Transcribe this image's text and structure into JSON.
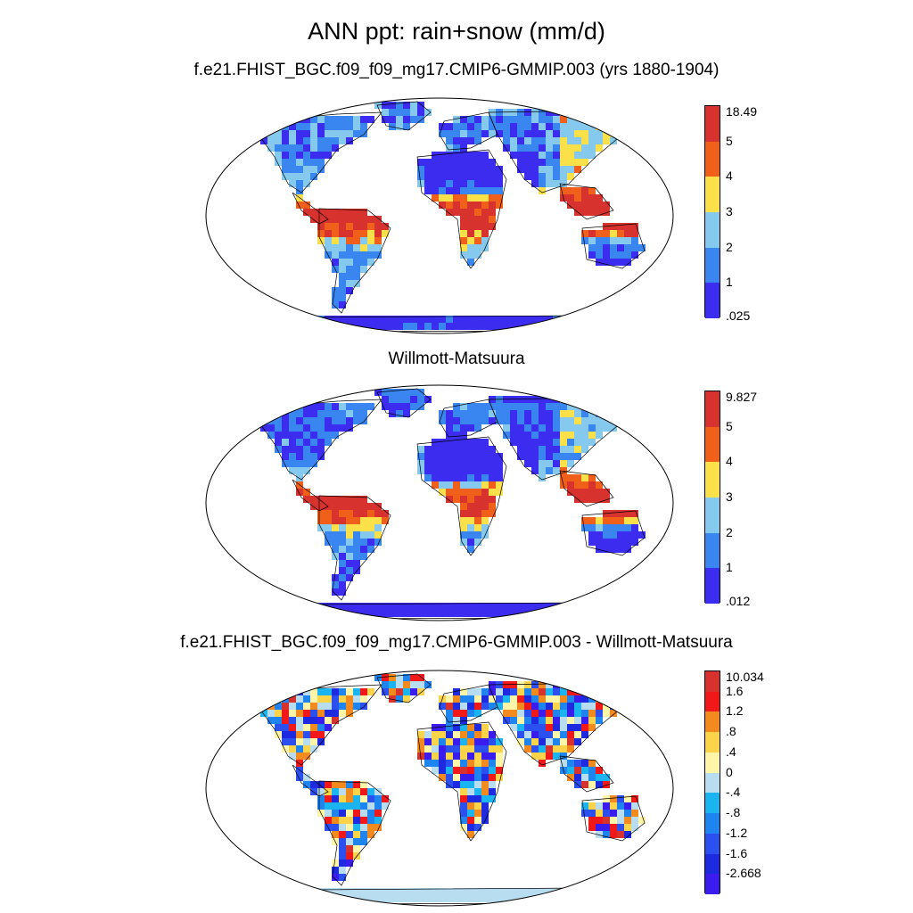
{
  "title": "ANN ppt: rain+snow (mm/d)",
  "panels": [
    {
      "subtitle": "f.e21.FHIST_BGC.f09_f09_mg17.CMIP6-GMMIP.003 (yrs 1880-1904)",
      "colorbar": {
        "labels": [
          "18.49",
          "5",
          "4",
          "3",
          "2",
          "1",
          ".025"
        ],
        "colors": [
          "#d8322f",
          "#f0601a",
          "#fbe04a",
          "#86c9ee",
          "#3a86f0",
          "#3c2cef"
        ]
      }
    },
    {
      "subtitle": "Willmott-Matsuura",
      "colorbar": {
        "labels": [
          "9.827",
          "5",
          "4",
          "3",
          "2",
          "1",
          ".012"
        ],
        "colors": [
          "#d8322f",
          "#f0601a",
          "#fbe04a",
          "#86c9ee",
          "#3a86f0",
          "#3c2cef"
        ]
      }
    },
    {
      "subtitle": "f.e21.FHIST_BGC.f09_f09_mg17.CMIP6-GMMIP.003 - Willmott-Matsuura",
      "colorbar": {
        "labels": [
          "10.034",
          "1.6",
          "1.2",
          ".8",
          ".4",
          "0",
          "-.4",
          "-.8",
          "-1.2",
          "-1.6",
          "-2.668"
        ],
        "colors": [
          "#d8322f",
          "#f01818",
          "#f28a1e",
          "#fbd44a",
          "#fff5a8",
          "#b8dcf0",
          "#1ab4f0",
          "#1e84ef",
          "#2c4fef",
          "#1e2ae0",
          "#3a1cef"
        ]
      }
    }
  ]
}
